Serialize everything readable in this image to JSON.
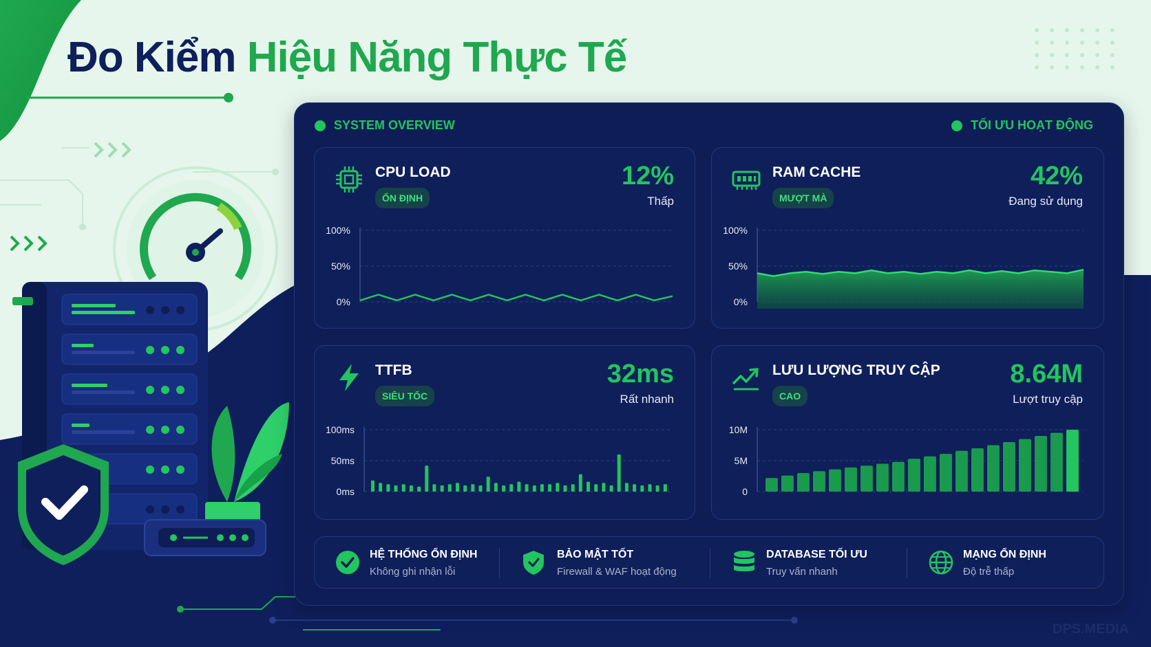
{
  "header": {
    "title_part1": "Đo Kiểm",
    "title_part2": "Hiệu Năng Thực Tế"
  },
  "panel": {
    "overview_label": "SYSTEM OVERVIEW",
    "status_label": "TỐI ƯU HOẠT ĐỘNG"
  },
  "cards": {
    "cpu": {
      "title": "CPU LOAD",
      "badge": "ỔN ĐỊNH",
      "value": "12%",
      "sub": "Thấp",
      "icon": "cpu-chip-icon",
      "y_ticks": [
        "100%",
        "50%",
        "0%"
      ]
    },
    "ram": {
      "title": "RAM CACHE",
      "badge": "MƯỢT MÀ",
      "value": "42%",
      "sub": "Đang sử dụng",
      "icon": "memory-icon",
      "y_ticks": [
        "100%",
        "50%",
        "0%"
      ]
    },
    "ttfb": {
      "title": "TTFB",
      "badge": "SIÊU TỐC",
      "value": "32ms",
      "sub": "Rất nhanh",
      "icon": "lightning-icon",
      "y_ticks": [
        "100ms",
        "50ms",
        "0ms"
      ]
    },
    "traffic": {
      "title": "LƯU LƯỢNG TRUY CẬP",
      "badge": "CAO",
      "value": "8.64M",
      "sub": "Lượt truy cập",
      "icon": "trend-up-icon",
      "y_ticks": [
        "10M",
        "5M",
        "0"
      ]
    }
  },
  "chart_data": [
    {
      "type": "line",
      "title": "CPU LOAD",
      "ylim": [
        0,
        100
      ],
      "y_unit": "%",
      "values": [
        2,
        10,
        2,
        10,
        2,
        10,
        2,
        10,
        2,
        10,
        2,
        10,
        2,
        10,
        2,
        10,
        2,
        8
      ]
    },
    {
      "type": "area",
      "title": "RAM CACHE",
      "ylim": [
        0,
        100
      ],
      "y_unit": "%",
      "values": [
        40,
        36,
        40,
        42,
        39,
        42,
        40,
        44,
        40,
        42,
        39,
        42,
        40,
        44,
        40,
        43,
        40,
        44,
        42,
        40,
        45
      ]
    },
    {
      "type": "bar",
      "title": "TTFB",
      "ylim": [
        0,
        100
      ],
      "y_unit": "ms",
      "values": [
        18,
        14,
        12,
        10,
        12,
        10,
        8,
        42,
        12,
        10,
        12,
        14,
        10,
        12,
        10,
        24,
        14,
        10,
        12,
        16,
        12,
        10,
        12,
        12,
        14,
        10,
        12,
        28,
        16,
        12,
        14,
        10,
        60,
        14,
        12,
        10,
        12,
        10,
        12
      ]
    },
    {
      "type": "bar",
      "title": "LƯU LƯỢNG TRUY CẬP",
      "ylim": [
        0,
        10
      ],
      "y_unit": "M",
      "values": [
        2.2,
        2.6,
        3.0,
        3.3,
        3.6,
        3.9,
        4.2,
        4.5,
        4.8,
        5.3,
        5.7,
        6.1,
        6.6,
        7.0,
        7.5,
        8.0,
        8.5,
        9.0,
        9.5,
        10.0
      ]
    }
  ],
  "features": [
    {
      "title": "HỆ THỐNG ỔN ĐỊNH",
      "sub": "Không ghi nhận lỗi",
      "icon": "check-circle-icon"
    },
    {
      "title": "BẢO MẬT TỐT",
      "sub": "Firewall & WAF hoạt động",
      "icon": "shield-check-icon"
    },
    {
      "title": "DATABASE TỐI ƯU",
      "sub": "Truy vấn nhanh",
      "icon": "database-icon"
    },
    {
      "title": "MẠNG ỔN ĐỊNH",
      "sub": "Độ trễ thấp",
      "icon": "globe-icon"
    }
  ],
  "brand": "DPS.MEDIA",
  "colors": {
    "accent": "#22c55e",
    "navy": "#0f1f5c",
    "panel": "#0e1d55",
    "background": "#e6f6ec"
  }
}
